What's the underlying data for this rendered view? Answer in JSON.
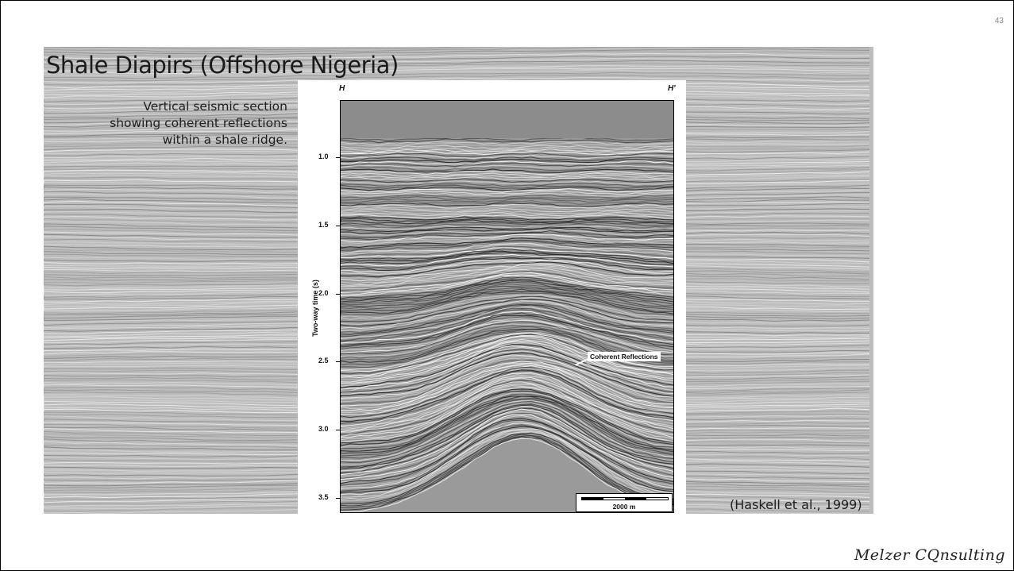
{
  "slide": {
    "number": "43",
    "title": "Shale Diapirs (Offshore Nigeria)",
    "caption": [
      "Vertical seismic section",
      "showing coherent reflections",
      "within a shale ridge."
    ],
    "citation": "(Haskell et al., 1999)",
    "brand": "Melzer CQnsulting"
  },
  "figure": {
    "left_label": "H",
    "right_label": "H'",
    "y_axis_label": "Two-way time (s)",
    "y_ticks": [
      "1.0",
      "1.5",
      "2.0",
      "2.5",
      "3.0",
      "3.5"
    ],
    "annotation": "Coherent Reflections",
    "scale_label": "2000 m"
  },
  "colors": {
    "water_column": "#8c8c8c",
    "seismic_base": "#9a9a9a"
  }
}
